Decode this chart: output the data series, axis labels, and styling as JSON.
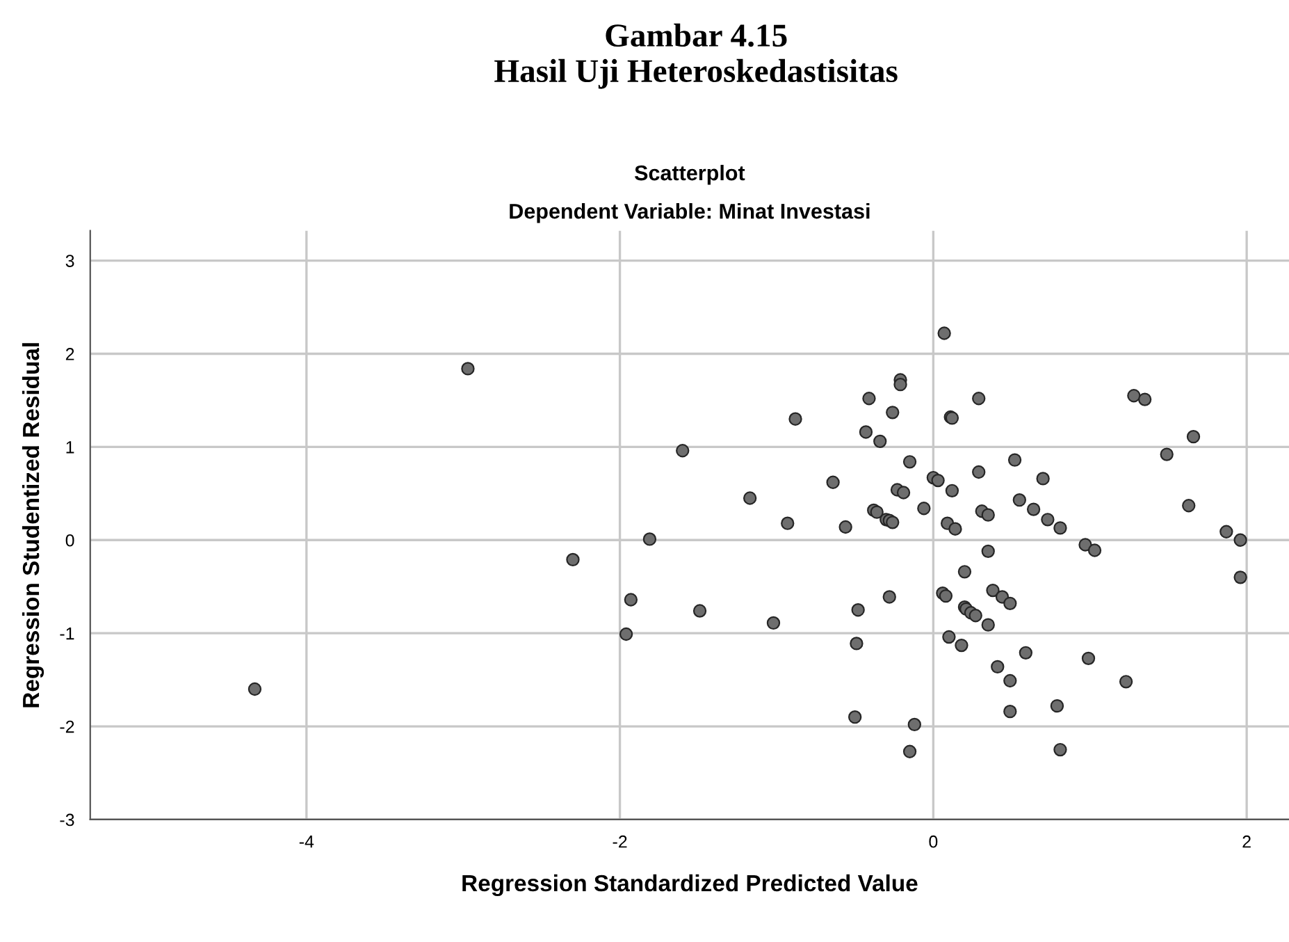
{
  "chart_data": {
    "type": "scatter",
    "title": "Gambar 4.15\nHasil Uji Heteroskedastisitas",
    "subtitle": "Scatterplot\nDependent Variable: Minat Investasi",
    "xlabel": "Regression Standardized Predicted Value",
    "ylabel": "Regression Studentized Residual",
    "xlim": [
      -5.38,
      2.27
    ],
    "ylim": [
      -3,
      3.32
    ],
    "xticks": [
      -4,
      -2,
      0,
      2
    ],
    "yticks": [
      -3,
      -2,
      -1,
      0,
      1,
      2,
      3
    ],
    "grid": true,
    "marker": "circle",
    "series": [
      {
        "color": "#6e6e6e",
        "x": [
          -2.97,
          -4.33,
          -2.3,
          -1.93,
          -1.96,
          -1.81,
          0.07,
          -0.21,
          -0.21,
          -0.41,
          0.29,
          -0.26,
          0.11,
          0.12,
          -0.88,
          -0.43,
          -0.34,
          -1.6,
          1.28,
          1.35,
          1.66,
          1.49,
          -0.15,
          0.52,
          0.29,
          0.7,
          0.0,
          0.03,
          -0.64,
          -0.23,
          -0.19,
          0.12,
          -1.17,
          0.55,
          0.64,
          -0.06,
          0.31,
          0.35,
          0.73,
          0.81,
          -0.38,
          -0.36,
          -0.3,
          -0.28,
          -0.26,
          0.09,
          0.14,
          -0.93,
          -0.56,
          1.63,
          1.87,
          1.96,
          1.96,
          0.97,
          1.03,
          0.35,
          0.2,
          -0.28,
          0.06,
          0.08,
          0.38,
          0.44,
          0.49,
          0.2,
          0.21,
          0.24,
          0.27,
          -1.49,
          -0.48,
          -1.02,
          0.35,
          -0.49,
          0.1,
          0.18,
          0.59,
          0.99,
          0.41,
          0.49,
          1.23,
          0.79,
          0.49,
          -0.5,
          -0.12,
          -0.15,
          0.81
        ],
        "values": [
          1.84,
          -1.6,
          -0.21,
          -0.64,
          -1.01,
          0.01,
          2.22,
          1.72,
          1.67,
          1.52,
          1.52,
          1.37,
          1.32,
          1.31,
          1.3,
          1.16,
          1.06,
          0.96,
          1.55,
          1.51,
          1.11,
          0.92,
          0.84,
          0.86,
          0.73,
          0.66,
          0.67,
          0.64,
          0.62,
          0.54,
          0.51,
          0.53,
          0.45,
          0.43,
          0.33,
          0.34,
          0.31,
          0.27,
          0.22,
          0.13,
          0.32,
          0.3,
          0.22,
          0.21,
          0.19,
          0.18,
          0.12,
          0.18,
          0.14,
          0.37,
          0.09,
          0.0,
          -0.4,
          -0.05,
          -0.11,
          -0.12,
          -0.34,
          -0.61,
          -0.57,
          -0.6,
          -0.54,
          -0.61,
          -0.68,
          -0.72,
          -0.74,
          -0.78,
          -0.81,
          -0.76,
          -0.75,
          -0.89,
          -0.91,
          -1.11,
          -1.04,
          -1.13,
          -1.21,
          -1.27,
          -1.36,
          -1.51,
          -1.52,
          -1.78,
          -1.84,
          -1.9,
          -1.98,
          -2.27,
          -2.25
        ]
      }
    ]
  }
}
